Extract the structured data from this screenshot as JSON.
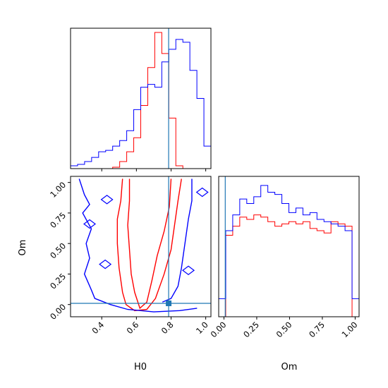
{
  "chart_data": [
    {
      "type": "histogram",
      "panel": "H0 marginal",
      "x_range": [
        0.22,
        1.03
      ],
      "truth": 0.786,
      "bins_x": [
        0.22,
        0.2605,
        0.301,
        0.3415,
        0.382,
        0.4225,
        0.463,
        0.5035,
        0.544,
        0.5845,
        0.625,
        0.6655,
        0.706,
        0.7465,
        0.787,
        0.8275,
        0.868,
        0.9085,
        0.949,
        0.9895,
        1.03
      ],
      "series": [
        {
          "color": "#ff0000",
          "values": [
            0,
            0,
            0,
            0,
            0,
            0,
            0.01,
            0.05,
            0.12,
            0.22,
            0.45,
            0.72,
            0.97,
            0.82,
            0.36,
            0.02,
            0,
            0,
            0,
            0
          ]
        },
        {
          "color": "#0000ff",
          "values": [
            0.02,
            0.03,
            0.05,
            0.08,
            0.12,
            0.13,
            0.16,
            0.2,
            0.27,
            0.42,
            0.58,
            0.6,
            0.58,
            0.76,
            0.85,
            0.92,
            0.9,
            0.7,
            0.5,
            0.16
          ]
        }
      ]
    },
    {
      "type": "histogram",
      "panel": "Om marginal",
      "x_range": [
        -0.04,
        1.03
      ],
      "truth": 0.01,
      "xlabel": "Om",
      "xticks": [
        "0.00",
        "0.25",
        "0.50",
        "0.75",
        "1.00"
      ],
      "xtick_values": [
        0,
        0.25,
        0.5,
        0.75,
        1.0
      ],
      "bins_x": [
        -0.04,
        0.0135,
        0.067,
        0.1205,
        0.174,
        0.2275,
        0.281,
        0.3345,
        0.388,
        0.4415,
        0.495,
        0.5485,
        0.602,
        0.6555,
        0.709,
        0.7625,
        0.816,
        0.8695,
        0.923,
        0.9765,
        1.03
      ],
      "series": [
        {
          "color": "#ff0000",
          "values": [
            0,
            0.36,
            0.4,
            0.44,
            0.43,
            0.45,
            0.44,
            0.42,
            0.4,
            0.41,
            0.42,
            0.41,
            0.42,
            0.39,
            0.38,
            0.37,
            0.42,
            0.41,
            0.4,
            0
          ]
        },
        {
          "color": "#0000ff",
          "values": [
            0.08,
            0.38,
            0.45,
            0.52,
            0.5,
            0.53,
            0.58,
            0.55,
            0.54,
            0.5,
            0.46,
            0.48,
            0.45,
            0.46,
            0.43,
            0.42,
            0.41,
            0.4,
            0.38,
            0.08
          ]
        }
      ]
    },
    {
      "type": "contour",
      "panel": "H0 vs Om",
      "xlabel": "H0",
      "ylabel": "Om",
      "x_range": [
        0.22,
        1.03
      ],
      "y_range": [
        -0.1,
        1.05
      ],
      "xticks": [
        "0.4",
        "0.6",
        "0.8",
        "1.0"
      ],
      "xtick_values": [
        0.4,
        0.6,
        0.8,
        1.0
      ],
      "yticks": [
        "0.00",
        "0.25",
        "0.50",
        "0.75",
        "1.00"
      ],
      "ytick_values": [
        0,
        0.25,
        0.5,
        0.75,
        1.0
      ],
      "truth": {
        "H0": 0.786,
        "Om": 0.01
      },
      "series": [
        {
          "color": "#ff0000",
          "contours": [
            [
              [
                0.52,
                1.03
              ],
              [
                0.51,
                0.85
              ],
              [
                0.49,
                0.7
              ],
              [
                0.49,
                0.5
              ],
              [
                0.5,
                0.3
              ],
              [
                0.52,
                0.1
              ],
              [
                0.54,
                0.0
              ],
              [
                0.59,
                -0.05
              ],
              [
                0.66,
                -0.04
              ],
              [
                0.71,
                0.05
              ],
              [
                0.76,
                0.25
              ],
              [
                0.8,
                0.45
              ],
              [
                0.82,
                0.65
              ],
              [
                0.84,
                0.85
              ],
              [
                0.86,
                1.03
              ]
            ],
            [
              [
                0.56,
                1.03
              ],
              [
                0.56,
                0.85
              ],
              [
                0.55,
                0.65
              ],
              [
                0.56,
                0.45
              ],
              [
                0.57,
                0.25
              ],
              [
                0.59,
                0.1
              ],
              [
                0.62,
                -0.03
              ],
              [
                0.66,
                0.02
              ],
              [
                0.69,
                0.2
              ],
              [
                0.72,
                0.4
              ],
              [
                0.76,
                0.6
              ],
              [
                0.79,
                0.8
              ],
              [
                0.8,
                1.03
              ]
            ]
          ]
        },
        {
          "color": "#0000ff",
          "contours": [
            [
              [
                0.27,
                1.03
              ],
              [
                0.3,
                0.9
              ],
              [
                0.33,
                0.82
              ],
              [
                0.29,
                0.75
              ],
              [
                0.34,
                0.62
              ],
              [
                0.31,
                0.5
              ],
              [
                0.33,
                0.38
              ],
              [
                0.3,
                0.25
              ],
              [
                0.34,
                0.12
              ],
              [
                0.36,
                0.05
              ],
              [
                0.45,
                0.0
              ],
              [
                0.55,
                -0.04
              ],
              [
                0.7,
                -0.06
              ],
              [
                0.85,
                -0.05
              ],
              [
                0.95,
                -0.03
              ]
            ],
            [
              [
                0.92,
                1.03
              ],
              [
                0.92,
                0.85
              ],
              [
                0.9,
                0.7
              ],
              [
                0.88,
                0.5
              ],
              [
                0.86,
                0.3
              ],
              [
                0.84,
                0.15
              ],
              [
                0.8,
                0.05
              ],
              [
                0.75,
                0.02
              ]
            ]
          ]
        }
      ]
    }
  ]
}
